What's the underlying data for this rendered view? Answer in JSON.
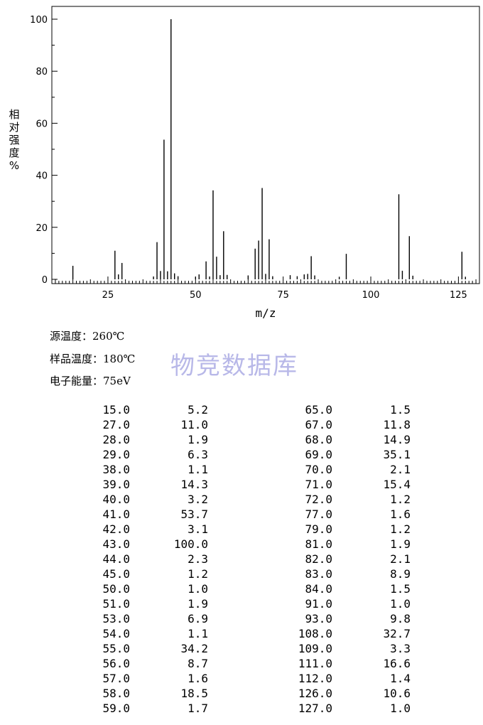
{
  "chart_data": {
    "type": "bar",
    "xlabel": "m/z",
    "ylabel_chars": [
      "相",
      "对",
      "强",
      "度",
      "%"
    ],
    "xlim": [
      9,
      131
    ],
    "ylim": [
      0,
      100
    ],
    "xticks": [
      25,
      50,
      75,
      100,
      125
    ],
    "yticks": [
      0,
      20,
      40,
      60,
      80,
      100
    ],
    "peaks": [
      [
        15,
        5.2
      ],
      [
        27,
        11.0
      ],
      [
        28,
        1.9
      ],
      [
        29,
        6.3
      ],
      [
        38,
        1.1
      ],
      [
        39,
        14.3
      ],
      [
        40,
        3.2
      ],
      [
        41,
        53.7
      ],
      [
        42,
        3.1
      ],
      [
        43,
        100.0
      ],
      [
        44,
        2.3
      ],
      [
        45,
        1.2
      ],
      [
        50,
        1.0
      ],
      [
        51,
        1.9
      ],
      [
        53,
        6.9
      ],
      [
        54,
        1.1
      ],
      [
        55,
        34.2
      ],
      [
        56,
        8.7
      ],
      [
        57,
        1.6
      ],
      [
        58,
        18.5
      ],
      [
        59,
        1.7
      ],
      [
        65,
        1.5
      ],
      [
        67,
        11.8
      ],
      [
        68,
        14.9
      ],
      [
        69,
        35.1
      ],
      [
        70,
        2.1
      ],
      [
        71,
        15.4
      ],
      [
        72,
        1.2
      ],
      [
        77,
        1.6
      ],
      [
        79,
        1.2
      ],
      [
        81,
        1.9
      ],
      [
        82,
        2.1
      ],
      [
        83,
        8.9
      ],
      [
        84,
        1.5
      ],
      [
        91,
        1.0
      ],
      [
        93,
        9.8
      ],
      [
        108,
        32.7
      ],
      [
        109,
        3.3
      ],
      [
        111,
        16.6
      ],
      [
        112,
        1.4
      ],
      [
        126,
        10.6
      ],
      [
        127,
        1.0
      ]
    ]
  },
  "conditions": [
    {
      "label": "源温度：",
      "value": "260℃"
    },
    {
      "label": "样品温度：",
      "value": "180℃"
    },
    {
      "label": "电子能量：",
      "value": "75eV"
    }
  ],
  "watermark": "物竞数据库",
  "table": {
    "left": [
      [
        "15.0",
        "5.2"
      ],
      [
        "27.0",
        "11.0"
      ],
      [
        "28.0",
        "1.9"
      ],
      [
        "29.0",
        "6.3"
      ],
      [
        "38.0",
        "1.1"
      ],
      [
        "39.0",
        "14.3"
      ],
      [
        "40.0",
        "3.2"
      ],
      [
        "41.0",
        "53.7"
      ],
      [
        "42.0",
        "3.1"
      ],
      [
        "43.0",
        "100.0"
      ],
      [
        "44.0",
        "2.3"
      ],
      [
        "45.0",
        "1.2"
      ],
      [
        "50.0",
        "1.0"
      ],
      [
        "51.0",
        "1.9"
      ],
      [
        "53.0",
        "6.9"
      ],
      [
        "54.0",
        "1.1"
      ],
      [
        "55.0",
        "34.2"
      ],
      [
        "56.0",
        "8.7"
      ],
      [
        "57.0",
        "1.6"
      ],
      [
        "58.0",
        "18.5"
      ],
      [
        "59.0",
        "1.7"
      ]
    ],
    "right": [
      [
        "65.0",
        "1.5"
      ],
      [
        "67.0",
        "11.8"
      ],
      [
        "68.0",
        "14.9"
      ],
      [
        "69.0",
        "35.1"
      ],
      [
        "70.0",
        "2.1"
      ],
      [
        "71.0",
        "15.4"
      ],
      [
        "72.0",
        "1.2"
      ],
      [
        "77.0",
        "1.6"
      ],
      [
        "79.0",
        "1.2"
      ],
      [
        "81.0",
        "1.9"
      ],
      [
        "82.0",
        "2.1"
      ],
      [
        "83.0",
        "8.9"
      ],
      [
        "84.0",
        "1.5"
      ],
      [
        "91.0",
        "1.0"
      ],
      [
        "93.0",
        "9.8"
      ],
      [
        "108.0",
        "32.7"
      ],
      [
        "109.0",
        "3.3"
      ],
      [
        "111.0",
        "16.6"
      ],
      [
        "112.0",
        "1.4"
      ],
      [
        "126.0",
        "10.6"
      ],
      [
        "127.0",
        "1.0"
      ]
    ]
  }
}
